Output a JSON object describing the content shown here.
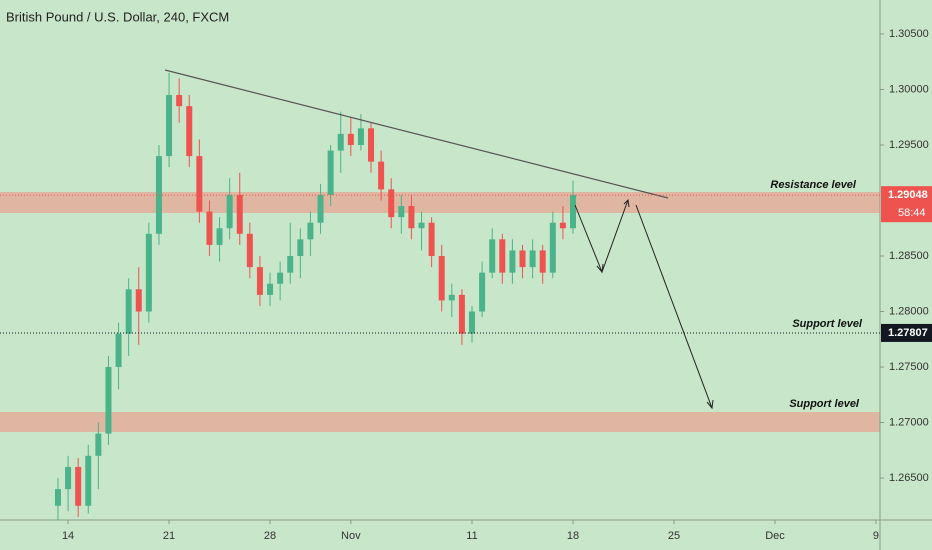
{
  "chart_data": {
    "type": "candlestick",
    "title": "British Pound / U.S. Dollar, 240, FXCM",
    "x": [
      -0.5,
      0,
      0.5,
      1,
      1.5,
      2,
      2.5,
      3,
      3.5,
      4,
      4.5,
      5,
      5.5,
      6,
      6.5,
      7,
      7.5,
      8,
      8.5,
      9,
      9.5,
      10,
      10.5,
      11,
      11.5,
      12,
      12.5,
      13,
      13.5,
      14,
      14.5,
      15,
      15.5,
      16,
      16.5,
      17,
      17.5,
      18,
      18.5,
      19,
      19.5,
      20,
      20.5,
      21,
      21.5,
      22,
      22.5,
      23,
      23.5,
      24,
      24.5,
      25
    ],
    "open": [
      1.2625,
      1.264,
      1.266,
      1.2625,
      1.267,
      1.269,
      1.275,
      1.278,
      1.282,
      1.28,
      1.287,
      1.294,
      1.2995,
      1.2985,
      1.294,
      1.289,
      1.286,
      1.2875,
      1.2905,
      1.287,
      1.284,
      1.2815,
      1.2825,
      1.2835,
      1.285,
      1.2865,
      1.288,
      1.2905,
      1.2945,
      1.296,
      1.295,
      1.2965,
      1.2935,
      1.291,
      1.2885,
      1.2895,
      1.2875,
      1.288,
      1.285,
      1.281,
      1.2815,
      1.278,
      1.28,
      1.2835,
      1.2865,
      1.2835,
      1.2855,
      1.284,
      1.2855,
      1.2835,
      1.288,
      1.2875
    ],
    "high": [
      1.265,
      1.267,
      1.2668,
      1.268,
      1.27,
      1.276,
      1.279,
      1.283,
      1.284,
      1.288,
      1.295,
      1.3015,
      1.301,
      1.2995,
      1.2955,
      1.29,
      1.2885,
      1.292,
      1.2925,
      1.288,
      1.285,
      1.2835,
      1.2845,
      1.288,
      1.2875,
      1.289,
      1.2915,
      1.295,
      1.298,
      1.2975,
      1.2978,
      1.297,
      1.2945,
      1.292,
      1.2905,
      1.2905,
      1.289,
      1.2885,
      1.286,
      1.2825,
      1.282,
      1.2805,
      1.2845,
      1.2875,
      1.287,
      1.2865,
      1.286,
      1.2865,
      1.286,
      1.289,
      1.2895,
      1.2918
    ],
    "low": [
      1.2612,
      1.262,
      1.2615,
      1.2618,
      1.264,
      1.268,
      1.273,
      1.276,
      1.277,
      1.279,
      1.286,
      1.293,
      1.297,
      1.293,
      1.288,
      1.285,
      1.2845,
      1.2865,
      1.286,
      1.283,
      1.2805,
      1.2805,
      1.281,
      1.2825,
      1.283,
      1.285,
      1.287,
      1.2895,
      1.2925,
      1.294,
      1.2945,
      1.2925,
      1.29,
      1.2875,
      1.287,
      1.2865,
      1.2855,
      1.284,
      1.28,
      1.2795,
      1.277,
      1.2772,
      1.2795,
      1.283,
      1.2825,
      1.2825,
      1.283,
      1.283,
      1.2825,
      1.283,
      1.2865,
      1.287
    ],
    "close": [
      1.264,
      1.266,
      1.2625,
      1.267,
      1.269,
      1.275,
      1.278,
      1.282,
      1.28,
      1.287,
      1.294,
      1.2995,
      1.2985,
      1.294,
      1.289,
      1.286,
      1.2875,
      1.2905,
      1.287,
      1.284,
      1.2815,
      1.2825,
      1.2835,
      1.285,
      1.2865,
      1.288,
      1.2905,
      1.2945,
      1.296,
      1.295,
      1.2965,
      1.2935,
      1.291,
      1.2885,
      1.2895,
      1.2875,
      1.288,
      1.285,
      1.281,
      1.2815,
      1.278,
      1.28,
      1.2835,
      1.2865,
      1.2835,
      1.2855,
      1.284,
      1.2855,
      1.2835,
      1.288,
      1.2875,
      1.2905
    ],
    "up_color": "#4bb38a",
    "down_color": "#ef5350",
    "xlim": [
      -3.37,
      40.2
    ],
    "xticks": [
      {
        "value": 0,
        "label": "14"
      },
      {
        "value": 5,
        "label": "21"
      },
      {
        "value": 10,
        "label": "28"
      },
      {
        "value": 14,
        "label": "Nov"
      },
      {
        "value": 20,
        "label": "11"
      },
      {
        "value": 25,
        "label": "18"
      },
      {
        "value": 30,
        "label": "25"
      },
      {
        "value": 35,
        "label": "Dec"
      },
      {
        "value": 40,
        "label": "9"
      }
    ],
    "ylim": [
      1.26122,
      1.30806
    ],
    "yticks": [
      {
        "value": 1.265,
        "label": "1.26500"
      },
      {
        "value": 1.27,
        "label": "1.27000"
      },
      {
        "value": 1.275,
        "label": "1.27500"
      },
      {
        "value": 1.28,
        "label": "1.28000"
      },
      {
        "value": 1.285,
        "label": "1.28500"
      },
      {
        "value": 1.295,
        "label": "1.29500"
      },
      {
        "value": 1.3,
        "label": "1.30000"
      },
      {
        "value": 1.305,
        "label": "1.30500"
      }
    ],
    "price_labels": [
      {
        "value": 1.29048,
        "label": "1.29048",
        "countdown": "58:44",
        "color": "#ef5350"
      },
      {
        "value": 1.27807,
        "label": "1.27807",
        "color": "#131722"
      }
    ],
    "annotations": [
      "Resistance level",
      "Support level",
      "Support level"
    ]
  }
}
